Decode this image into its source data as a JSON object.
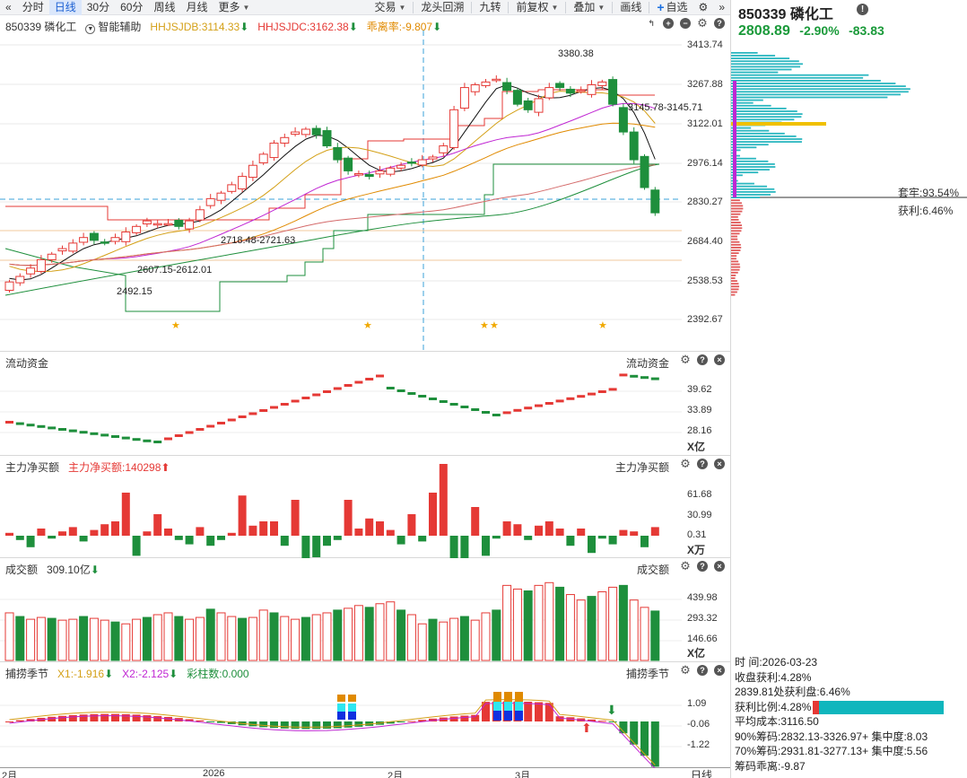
{
  "toolbar": {
    "items": [
      {
        "label": "分时",
        "active": false
      },
      {
        "label": "日线",
        "active": true
      },
      {
        "label": "30分",
        "active": false
      },
      {
        "label": "60分",
        "active": false
      },
      {
        "label": "周线",
        "active": false
      },
      {
        "label": "月线",
        "active": false
      },
      {
        "label": "更多",
        "active": false
      }
    ],
    "right_items": [
      "交易",
      "龙头回溯",
      "九转",
      "前复权",
      "叠加",
      "画线",
      "自选"
    ]
  },
  "main_chart": {
    "stock_code_name": "850339 磷化工",
    "assist_label": "智能辅助",
    "indicators": [
      {
        "label": "HHJSJDB:3114.33",
        "color": "#d4a017"
      },
      {
        "label": "HHJSJDC:3162.38",
        "color": "#e53935"
      },
      {
        "label": "乖离率:-9.807",
        "color": "#e08a00"
      }
    ],
    "y_labels": [
      "3413.74",
      "3267.88",
      "3122.01",
      "2976.14",
      "2830.27",
      "2684.40",
      "2538.53",
      "2392.67"
    ],
    "annotations": [
      "3380.38",
      "3145.78-3145.71",
      "2718.48-2721.63",
      "2607.15-2612.01",
      "2492.15"
    ]
  },
  "flow_panel": {
    "title": "流动资金",
    "right_title": "流动资金",
    "y_labels": [
      "39.62",
      "33.89",
      "28.16"
    ],
    "unit": "X亿"
  },
  "net_panel": {
    "title": "主力净买额",
    "value_label": "主力净买额:140298",
    "right_title": "主力净买额",
    "y_labels": [
      "61.68",
      "30.99",
      "0.31"
    ],
    "unit": "X万"
  },
  "amount_panel": {
    "title": "成交额",
    "value_label": "309.10亿",
    "right_title": "成交额",
    "y_labels": [
      "439.98",
      "293.32",
      "146.66"
    ],
    "unit": "X亿"
  },
  "season_panel": {
    "title": "捕捞季节",
    "x1_label": "X1:-1.916",
    "x2_label": "X2:-2.125",
    "bar_label": "彩柱数:0.000",
    "right_title": "捕捞季节",
    "y_labels": [
      "1.09",
      "-0.06",
      "-1.22"
    ]
  },
  "x_axis": [
    "2月",
    "2026",
    "2月",
    "3月"
  ],
  "x_axis_right": "日线",
  "quote": {
    "name": "850339 磷化工",
    "price": "2808.89",
    "change_pct": "-2.90%",
    "change": "-83.83"
  },
  "cyq": {
    "trapped": "套牢:93.54%",
    "profit": "获利:6.46%",
    "date_label": "时       间:2026-03-23",
    "profit_line": "收盘获利:4.28%",
    "profit_at": "2839.81处获利盘:6.46%",
    "ratio_label": "获利比例:4.28%",
    "ratio": 0.0428,
    "avg_cost": "平均成本:3116.50",
    "c90": "90%筹码:2832.13-3326.97+ 集中度:8.03",
    "c70": "70%筹码:2931.81-3277.13+ 集中度:5.56",
    "deviation": "筹码乖离:-9.87"
  },
  "colors": {
    "up": "#e53935",
    "down": "#1e8f3c",
    "cyan": "#0fb6bd"
  }
}
